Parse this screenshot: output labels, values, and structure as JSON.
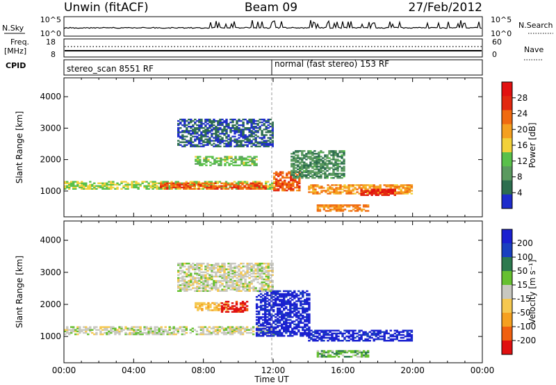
{
  "header": {
    "title_left": "Unwin (fitACF)",
    "title_center": "Beam 09",
    "title_right": "27/Feb/2012"
  },
  "strips": {
    "nsky_label": "N.Sky",
    "nsky_ticks": [
      "10^5",
      "10^0"
    ],
    "nsearch_label": "N.Search",
    "nsearch_ticks": [
      "10^5",
      "10^0"
    ],
    "freq_label": "Freq.",
    "freq_unit": "[MHz]",
    "freq_ticks": [
      "18",
      "8"
    ],
    "nave_label": "Nave",
    "nave_ticks": [
      "60",
      "0"
    ],
    "cpid_label": "CPID",
    "cpid_modes": [
      {
        "label": "stereo_scan 8551 RF",
        "start_hour": 0
      },
      {
        "label": "normal (fast stereo) 153 RF",
        "start_hour": 12
      }
    ]
  },
  "axes": {
    "x_label": "Time UT",
    "x_ticks": [
      "00:00",
      "04:00",
      "08:00",
      "12:00",
      "16:00",
      "20:00",
      "00:00"
    ],
    "x_range_hours": [
      0,
      24
    ],
    "y_label": "Slant Range [km]",
    "y_ticks": [
      "1000",
      "2000",
      "3000",
      "4000"
    ],
    "y_range_km": [
      180,
      4600
    ]
  },
  "colors": {
    "power": [
      "#1e2ccc",
      "#2d6e4f",
      "#5a9a5f",
      "#59c04a",
      "#f2d13a",
      "#f5a020",
      "#f06a10",
      "#e22810",
      "#e21010"
    ],
    "velocity": [
      "#e01010",
      "#f06010",
      "#f5a020",
      "#f5c850",
      "#c8c8c0",
      "#66c030",
      "#2d7a4f",
      "#1a40c0",
      "#1a20d0"
    ]
  },
  "chart_data": [
    {
      "type": "heatmap",
      "name": "power",
      "x_range_hours": [
        0,
        24
      ],
      "y_range_km": [
        180,
        4600
      ],
      "colorbar_label": "Power [dB]",
      "colorbar_ticks": [
        "4",
        "8",
        "12",
        "16",
        "20",
        "24",
        "28"
      ],
      "value_range": [
        0,
        32
      ],
      "regions": [
        {
          "t0": 0.0,
          "t1": 12.0,
          "r0": 1050,
          "r1": 1300,
          "v": 14
        },
        {
          "t0": 5.5,
          "t1": 11.5,
          "r0": 1050,
          "r1": 1250,
          "v": 24
        },
        {
          "t0": 7.5,
          "t1": 11.0,
          "r0": 1800,
          "r1": 2100,
          "v": 12
        },
        {
          "t0": 12.0,
          "t1": 13.5,
          "r0": 1000,
          "r1": 1600,
          "v": 24
        },
        {
          "t0": 14.0,
          "t1": 20.0,
          "r0": 900,
          "r1": 1200,
          "v": 20
        },
        {
          "t0": 17.0,
          "t1": 19.0,
          "r0": 850,
          "r1": 1050,
          "v": 28
        },
        {
          "t0": 14.5,
          "t1": 17.5,
          "r0": 350,
          "r1": 550,
          "v": 22
        },
        {
          "t0": 6.5,
          "t1": 12.0,
          "r0": 2400,
          "r1": 3300,
          "v": 4
        },
        {
          "t0": 13.0,
          "t1": 16.0,
          "r0": 1400,
          "r1": 2300,
          "v": 8
        }
      ]
    },
    {
      "type": "heatmap",
      "name": "velocity",
      "x_range_hours": [
        0,
        24
      ],
      "y_range_km": [
        180,
        4600
      ],
      "colorbar_label": "Velocity [m s⁻¹]",
      "colorbar_ticks": [
        "200",
        "100",
        "50",
        "15",
        "-15",
        "-50",
        "-100",
        "-200"
      ],
      "value_range": [
        -250,
        250
      ],
      "regions": [
        {
          "t0": 0.0,
          "t1": 12.0,
          "r0": 1050,
          "r1": 1300,
          "v": 0
        },
        {
          "t0": 7.5,
          "t1": 9.5,
          "r0": 1800,
          "r1": 2050,
          "v": -70
        },
        {
          "t0": 9.0,
          "t1": 10.5,
          "r0": 1750,
          "r1": 2100,
          "v": -220
        },
        {
          "t0": 11.0,
          "t1": 14.0,
          "r0": 1000,
          "r1": 2400,
          "v": 220
        },
        {
          "t0": 14.0,
          "t1": 20.0,
          "r0": 850,
          "r1": 1200,
          "v": 220
        },
        {
          "t0": 14.5,
          "t1": 17.5,
          "r0": 350,
          "r1": 550,
          "v": 60
        },
        {
          "t0": 6.5,
          "t1": 12.0,
          "r0": 2400,
          "r1": 3300,
          "v": 0
        }
      ]
    }
  ]
}
